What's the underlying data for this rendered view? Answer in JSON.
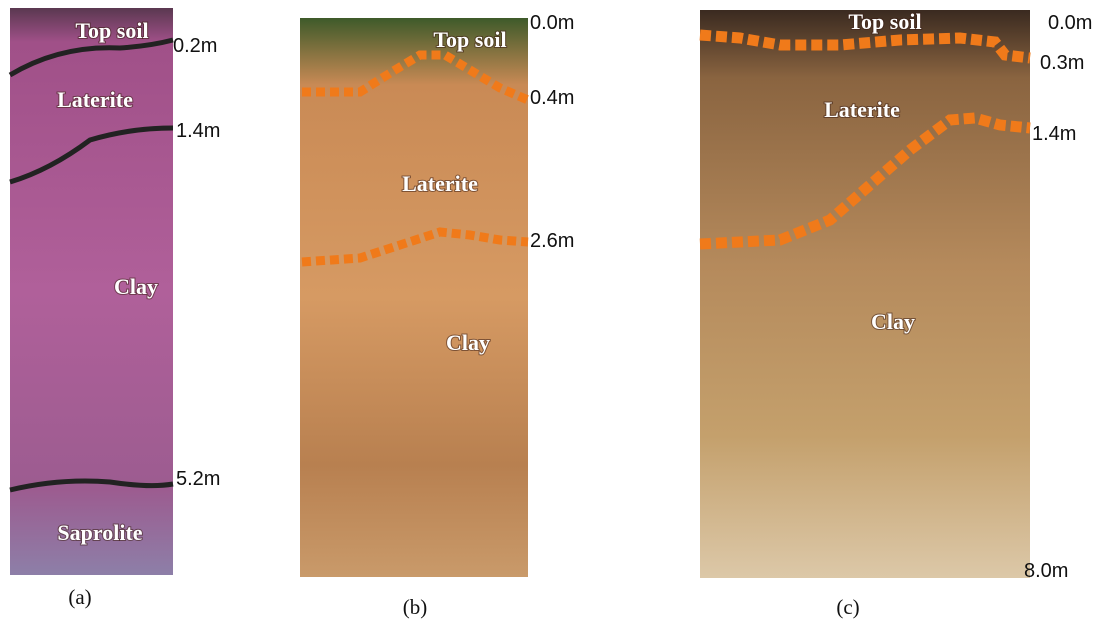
{
  "panels": [
    {
      "caption": "(a)",
      "layers": [
        "Top soil",
        "Laterite",
        "Clay",
        "Saprolite"
      ],
      "depths": [
        "0.2m",
        "1.4m",
        "5.2m"
      ]
    },
    {
      "caption": "(b)",
      "layers": [
        "Top soil",
        "Laterite",
        "Clay"
      ],
      "depths": [
        "0.0m",
        "0.4m",
        "2.6m"
      ]
    },
    {
      "caption": "(c)",
      "layers": [
        "Top soil",
        "Laterite",
        "Clay"
      ],
      "depths": [
        "0.0m",
        "0.3m",
        "1.4m",
        "8.0m"
      ]
    }
  ]
}
